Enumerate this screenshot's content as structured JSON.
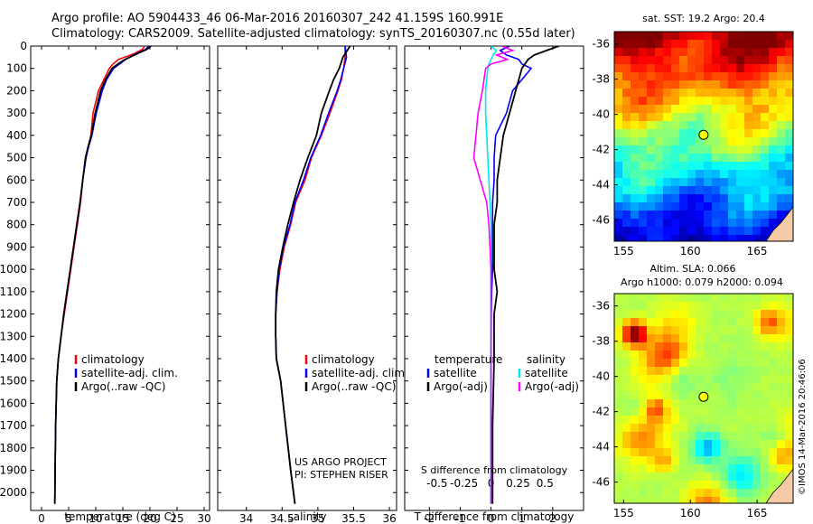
{
  "header": {
    "line1": "Argo profile: AO 5904433_46 06-Mar-2016 20160307_242 41.159S 160.991E",
    "line2": "Climatology: CARS2009. Satellite-adjusted climatology: synTS_20160307.nc (0.55d later)"
  },
  "colors": {
    "clim": "#ff0000",
    "sat": "#0000ff",
    "argo": "#000000",
    "sat_sal": "#00e5ee",
    "argo_sal": "#ff00ff"
  },
  "chart_data": [
    {
      "type": "line",
      "panel": "temperature",
      "xlabel": "temperature (deg C)",
      "ylabel": "",
      "xlim": [
        -2,
        31
      ],
      "ylim": [
        2080,
        0
      ],
      "xticks": [
        0,
        5,
        10,
        15,
        20,
        25,
        30
      ],
      "yticks": [
        0,
        100,
        200,
        300,
        400,
        500,
        600,
        700,
        800,
        900,
        1000,
        1100,
        1200,
        1300,
        1400,
        1500,
        1600,
        1700,
        1800,
        1900,
        2000
      ],
      "legend": {
        "placement": "center-left",
        "entries": [
          "climatology",
          "satellite-adj. clim.",
          "Argo(..raw -QC)"
        ]
      },
      "series": [
        {
          "name": "climatology",
          "color": "#ff0000",
          "x": [
            19.0,
            18.6,
            17.0,
            14.2,
            13.2,
            12.5,
            11.5,
            10.5,
            9.5,
            9.1,
            8.6,
            8.2,
            7.6,
            7.2,
            6.6,
            6.0,
            5.4,
            4.8,
            4.2,
            3.6,
            3.1,
            2.8,
            2.6,
            2.5,
            2.45
          ],
          "y": [
            0,
            15,
            35,
            60,
            80,
            100,
            150,
            200,
            300,
            400,
            450,
            500,
            600,
            700,
            800,
            900,
            1000,
            1100,
            1200,
            1300,
            1400,
            1500,
            1700,
            1900,
            2050
          ]
        },
        {
          "name": "satellite-adj. clim.",
          "color": "#0000ff",
          "x": [
            19.8,
            19.2,
            17.4,
            15.5,
            14.4,
            13.3,
            12.0,
            11.2,
            10.1,
            9.3,
            8.7,
            8.2,
            7.6,
            7.1,
            6.5,
            5.9,
            5.3,
            4.7,
            4.1,
            3.6,
            3.1,
            2.8,
            2.6,
            2.5,
            2.45
          ],
          "y": [
            0,
            15,
            35,
            60,
            80,
            100,
            150,
            200,
            300,
            400,
            450,
            500,
            600,
            700,
            800,
            900,
            1000,
            1100,
            1200,
            1300,
            1400,
            1500,
            1700,
            1900,
            2050
          ]
        },
        {
          "name": "Argo(..raw -QC)",
          "color": "#000000",
          "x": [
            20.2,
            19.4,
            17.6,
            15.4,
            14.1,
            13.0,
            11.8,
            10.9,
            9.9,
            9.2,
            8.6,
            8.1,
            7.6,
            7.1,
            6.5,
            5.9,
            5.3,
            4.7,
            4.1,
            3.6,
            3.1,
            2.8,
            2.6,
            2.5,
            2.45
          ],
          "y": [
            0,
            15,
            35,
            60,
            80,
            100,
            150,
            200,
            300,
            400,
            450,
            500,
            600,
            700,
            800,
            900,
            1000,
            1100,
            1200,
            1300,
            1400,
            1500,
            1700,
            1900,
            2050
          ]
        }
      ]
    },
    {
      "type": "line",
      "panel": "salinity",
      "xlabel": "salinity",
      "xlim": [
        33.6,
        36.1
      ],
      "ylim": [
        2080,
        0
      ],
      "xticks": [
        34,
        34.5,
        35,
        35.5,
        36
      ],
      "legend": {
        "placement": "center-right",
        "entries": [
          "climatology",
          "satellite-adj. clim.",
          "Argo(..raw -QC)"
        ]
      },
      "annotation": [
        "US ARGO PROJECT",
        "PI: STEPHEN RISER"
      ],
      "series": [
        {
          "name": "climatology",
          "color": "#ff0000",
          "x": [
            35.38,
            35.38,
            35.36,
            35.33,
            35.28,
            35.17,
            35.05,
            34.91,
            34.82,
            34.69,
            34.62,
            34.53,
            34.47,
            34.43,
            34.41,
            34.41,
            34.42,
            34.48,
            34.55,
            34.62,
            34.68
          ],
          "y": [
            0,
            50,
            100,
            150,
            200,
            300,
            400,
            500,
            600,
            700,
            800,
            900,
            1000,
            1100,
            1200,
            1300,
            1400,
            1500,
            1700,
            1900,
            2050
          ]
        },
        {
          "name": "satellite-adj. clim.",
          "color": "#0000ff",
          "x": [
            35.38,
            35.4,
            35.36,
            35.32,
            35.27,
            35.15,
            35.04,
            34.9,
            34.8,
            34.68,
            34.61,
            34.52,
            34.46,
            34.43,
            34.41,
            34.41,
            34.42,
            34.48,
            34.55,
            34.62,
            34.68
          ],
          "y": [
            0,
            50,
            100,
            150,
            200,
            300,
            400,
            500,
            600,
            700,
            800,
            900,
            1000,
            1100,
            1200,
            1300,
            1400,
            1500,
            1700,
            1900,
            2050
          ]
        },
        {
          "name": "Argo(..raw -QC)",
          "color": "#000000",
          "x": [
            35.45,
            35.35,
            35.3,
            35.22,
            35.16,
            35.05,
            34.98,
            34.86,
            34.75,
            34.66,
            34.58,
            34.51,
            34.45,
            34.42,
            34.41,
            34.41,
            34.42,
            34.48,
            34.55,
            34.62,
            34.68
          ],
          "y": [
            0,
            50,
            100,
            150,
            200,
            300,
            400,
            500,
            600,
            700,
            800,
            900,
            1000,
            1100,
            1200,
            1300,
            1400,
            1500,
            1700,
            1900,
            2050
          ]
        }
      ]
    },
    {
      "type": "line",
      "panel": "difference",
      "xlabel": "T difference from climatology",
      "top_axis_label": "S difference from climatology",
      "xlim": [
        -2.8,
        3.0
      ],
      "ylim": [
        2080,
        0
      ],
      "xticks": [
        -2,
        -1,
        0,
        1,
        2
      ],
      "top_ticks": [
        -0.5,
        -0.25,
        0,
        0.25,
        0.5
      ],
      "top_tick_labels": [
        "-0.5",
        "-0.25",
        "0",
        "0.25",
        "0.5"
      ],
      "legend": {
        "placement": "center",
        "temperature_title": "temperature",
        "salinity_title": "salinity",
        "temperature_entries": [
          "satellite",
          "Argo(-adj)"
        ],
        "salinity_entries": [
          "satellite",
          "Argo(-adj)"
        ]
      },
      "series": [
        {
          "name": "temperature satellite",
          "color": "#0000ff",
          "x": [
            0.6,
            0.3,
            0.5,
            0.9,
            1.0,
            1.3,
            1.0,
            0.7,
            0.5,
            0.15,
            0.1,
            0.1,
            0.05,
            0.05,
            0.05,
            0.05,
            0.02,
            0.01,
            0.0,
            0.0,
            0.0
          ],
          "y": [
            0,
            20,
            40,
            60,
            80,
            100,
            150,
            200,
            300,
            400,
            500,
            600,
            700,
            800,
            900,
            1000,
            1100,
            1200,
            1400,
            1700,
            2050
          ]
        },
        {
          "name": "temperature Argo(-adj)",
          "color": "#000000",
          "x": [
            2.2,
            1.8,
            1.4,
            1.2,
            1.1,
            1.0,
            0.9,
            0.8,
            0.6,
            0.4,
            0.3,
            0.2,
            0.2,
            0.1,
            0.1,
            0.1,
            0.2,
            0.1,
            0.1,
            0.05,
            0.05
          ],
          "y": [
            0,
            20,
            40,
            60,
            80,
            100,
            150,
            200,
            300,
            400,
            500,
            600,
            700,
            800,
            900,
            1000,
            1100,
            1200,
            1400,
            1700,
            2050
          ]
        },
        {
          "name": "salinity satellite",
          "color": "#00e5ee",
          "x": [
            0.0,
            0.05,
            0.02,
            0.0,
            -0.02,
            -0.03,
            -0.05,
            -0.05,
            -0.04,
            -0.03,
            -0.02,
            -0.01,
            0.0,
            0.0,
            0.0,
            0.0,
            0.0,
            0.0,
            0.0
          ],
          "y": [
            0,
            20,
            40,
            60,
            80,
            100,
            200,
            300,
            400,
            500,
            600,
            700,
            800,
            900,
            1000,
            1200,
            1500,
            1800,
            2050
          ]
        },
        {
          "name": "salinity Argo(-adj)",
          "color": "#ff00ff",
          "x": [
            0.1,
            0.2,
            0.05,
            0.15,
            0.0,
            -0.05,
            -0.08,
            -0.12,
            -0.14,
            -0.16,
            -0.1,
            -0.04,
            -0.02,
            -0.01,
            0.0,
            0.0,
            0.0,
            0.0,
            0.0
          ],
          "y": [
            0,
            20,
            40,
            60,
            80,
            100,
            200,
            300,
            400,
            500,
            600,
            700,
            800,
            900,
            1000,
            1200,
            1500,
            1800,
            2050
          ]
        }
      ]
    },
    {
      "type": "heatmap",
      "panel": "sst_map",
      "title": "sat. SST: 19.2  Argo: 20.4",
      "xlim": [
        154.3,
        167.7
      ],
      "ylim": [
        -47.2,
        -35.3
      ],
      "xticks": [
        155,
        160,
        165
      ],
      "yticks": [
        -36,
        -38,
        -40,
        -42,
        -44,
        -46
      ],
      "float_position": {
        "lon": 160.991,
        "lat": -41.159
      }
    },
    {
      "type": "heatmap",
      "panel": "sla_map",
      "title_lines": [
        "Altim. SLA: 0.066",
        "Argo h1000: 0.079 h2000: 0.094"
      ],
      "xlim": [
        154.3,
        167.7
      ],
      "ylim": [
        -47.2,
        -35.3
      ],
      "xticks": [
        155,
        160,
        165
      ],
      "yticks": [
        -36,
        -38,
        -40,
        -42,
        -44,
        -46
      ],
      "float_position": {
        "lon": 160.991,
        "lat": -41.159
      }
    }
  ],
  "credit": "©IMOS 14-Mar-2016 20:46:06"
}
